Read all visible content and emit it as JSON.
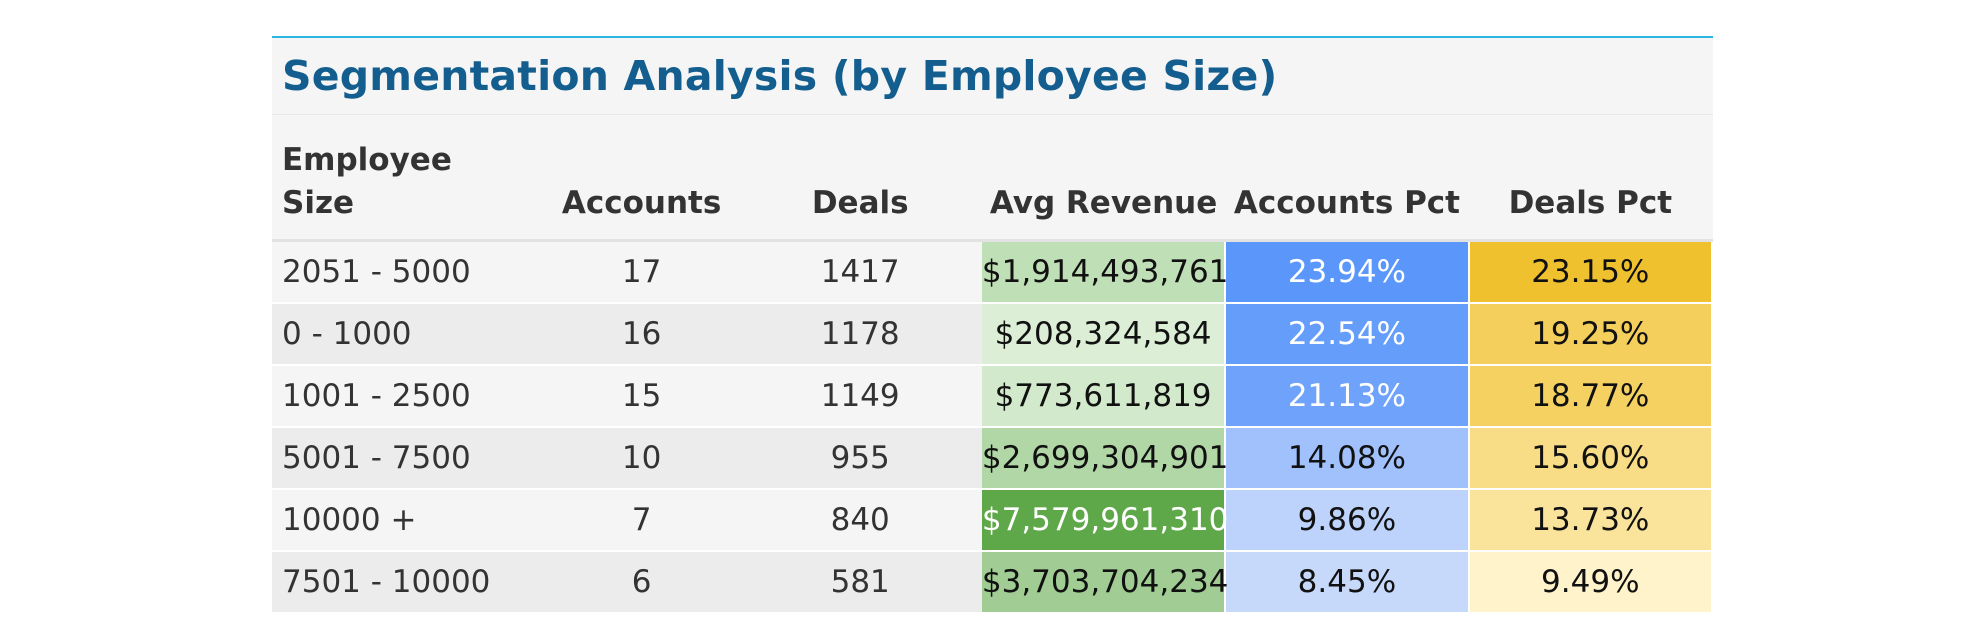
{
  "table": {
    "title": "Segmentation Analysis (by Employee Size)",
    "headers": {
      "segment_line1": "Employee",
      "segment_line2": "Size",
      "accounts": "Accounts",
      "deals": "Deals",
      "avg_revenue": "Avg Revenue",
      "accounts_pct": "Accounts Pct",
      "deals_pct": "Deals Pct"
    },
    "rows": [
      {
        "segment": "2051 - 5000",
        "accounts": "17",
        "deals": "1417",
        "avg_revenue": "$1,914,493,761",
        "accounts_pct": "23.94%",
        "deals_pct": "23.15%"
      },
      {
        "segment": "0 - 1000",
        "accounts": "16",
        "deals": "1178",
        "avg_revenue": "$208,324,584",
        "accounts_pct": "22.54%",
        "deals_pct": "19.25%"
      },
      {
        "segment": "1001 - 2500",
        "accounts": "15",
        "deals": "1149",
        "avg_revenue": "$773,611,819",
        "accounts_pct": "21.13%",
        "deals_pct": "18.77%"
      },
      {
        "segment": "5001 - 7500",
        "accounts": "10",
        "deals": "955",
        "avg_revenue": "$2,699,304,901",
        "accounts_pct": "14.08%",
        "deals_pct": "15.60%"
      },
      {
        "segment": "10000 +",
        "accounts": "7",
        "deals": "840",
        "avg_revenue": "$7,579,961,310",
        "accounts_pct": "9.86%",
        "deals_pct": "13.73%"
      },
      {
        "segment": "7501 - 10000",
        "accounts": "6",
        "deals": "581",
        "avg_revenue": "$3,703,704,234",
        "accounts_pct": "8.45%",
        "deals_pct": "9.49%"
      }
    ]
  },
  "chart_data": {
    "type": "table",
    "title": "Segmentation Analysis (by Employee Size)",
    "columns": [
      "Employee Size",
      "Accounts",
      "Deals",
      "Avg Revenue",
      "Accounts Pct",
      "Deals Pct"
    ],
    "segments": [
      "2051 - 5000",
      "0 - 1000",
      "1001 - 2500",
      "5001 - 7500",
      "10000 +",
      "7501 - 10000"
    ],
    "accounts": [
      17,
      16,
      15,
      10,
      7,
      6
    ],
    "deals": [
      1417,
      1178,
      1149,
      955,
      840,
      581
    ],
    "avg_revenue": [
      1914493761,
      208324584,
      773611819,
      2699304901,
      7579961310,
      3703704234
    ],
    "accounts_pct": [
      23.94,
      22.54,
      21.13,
      14.08,
      9.86,
      8.45
    ],
    "deals_pct": [
      23.15,
      19.25,
      18.77,
      15.6,
      13.73,
      9.49
    ]
  },
  "colors": {
    "title": "#135e8e",
    "top_rule": "#29b6e0",
    "revenue_scale": [
      "#dcefd6",
      "#5fa84a"
    ],
    "accounts_pct_scale": [
      "#c7d9fb",
      "#5b97fb"
    ],
    "deals_pct_scale": [
      "#fff3cc",
      "#f0c12f"
    ]
  }
}
